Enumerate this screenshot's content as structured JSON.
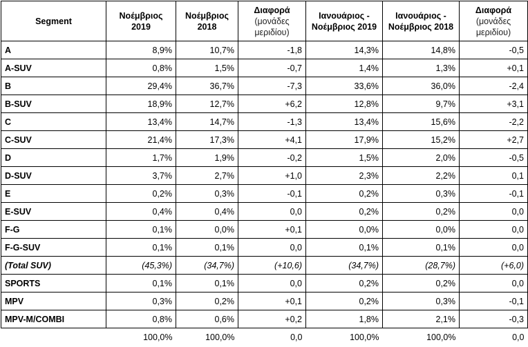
{
  "headers": [
    {
      "main": "Segment",
      "sub": ""
    },
    {
      "main": "Νοέμβριος 2019",
      "sub": ""
    },
    {
      "main": "Νοέμβριος 2018",
      "sub": ""
    },
    {
      "main": "Διαφορά",
      "sub": "(μονάδες μεριδίου)"
    },
    {
      "main": "Ιανουάριος - Νοέμβριος 2019",
      "sub": ""
    },
    {
      "main": "Ιανουάριος - Νοέμβριος 2018",
      "sub": ""
    },
    {
      "main": "Διαφορά",
      "sub": "(μονάδες μεριδίου)"
    }
  ],
  "rows": [
    {
      "segment": "A",
      "cells": [
        "8,9%",
        "10,7%",
        "-1,8",
        "14,3%",
        "14,8%",
        "-0,5"
      ]
    },
    {
      "segment": "A-SUV",
      "cells": [
        "0,8%",
        "1,5%",
        "-0,7",
        "1,4%",
        "1,3%",
        "+0,1"
      ]
    },
    {
      "segment": "B",
      "cells": [
        "29,4%",
        "36,7%",
        "-7,3",
        "33,6%",
        "36,0%",
        "-2,4"
      ]
    },
    {
      "segment": "B-SUV",
      "cells": [
        "18,9%",
        "12,7%",
        "+6,2",
        "12,8%",
        "9,7%",
        "+3,1"
      ]
    },
    {
      "segment": "C",
      "cells": [
        "13,4%",
        "14,7%",
        "-1,3",
        "13,4%",
        "15,6%",
        "-2,2"
      ]
    },
    {
      "segment": "C-SUV",
      "cells": [
        "21,4%",
        "17,3%",
        "+4,1",
        "17,9%",
        "15,2%",
        "+2,7"
      ]
    },
    {
      "segment": "D",
      "cells": [
        "1,7%",
        "1,9%",
        "-0,2",
        "1,5%",
        "2,0%",
        "-0,5"
      ]
    },
    {
      "segment": "D-SUV",
      "cells": [
        "3,7%",
        "2,7%",
        "+1,0",
        "2,3%",
        "2,2%",
        "0,1"
      ]
    },
    {
      "segment": "E",
      "cells": [
        "0,2%",
        "0,3%",
        "-0,1",
        "0,2%",
        "0,3%",
        "-0,1"
      ]
    },
    {
      "segment": "E-SUV",
      "cells": [
        "0,4%",
        "0,4%",
        "0,0",
        "0,2%",
        "0,2%",
        "0,0"
      ]
    },
    {
      "segment": "F-G",
      "cells": [
        "0,1%",
        "0,0%",
        "+0,1",
        "0,0%",
        "0,0%",
        "0,0"
      ]
    },
    {
      "segment": "F-G-SUV",
      "cells": [
        "0,1%",
        "0,1%",
        "0,0",
        "0,1%",
        "0,1%",
        "0,0"
      ]
    },
    {
      "segment": "(Total SUV)",
      "cells": [
        "(45,3%)",
        "(34,7%)",
        "(+10,6)",
        "(34,7%)",
        "(28,7%)",
        "(+6,0)"
      ],
      "total": true
    },
    {
      "segment": "SPORTS",
      "cells": [
        "0,1%",
        "0,1%",
        "0,0",
        "0,2%",
        "0,2%",
        "0,0"
      ]
    },
    {
      "segment": "MPV",
      "cells": [
        "0,3%",
        "0,2%",
        "+0,1",
        "0,2%",
        "0,3%",
        "-0,1"
      ]
    },
    {
      "segment": "MPV-M/COMBI",
      "cells": [
        "0,8%",
        "0,6%",
        "+0,2",
        "1,8%",
        "2,1%",
        "-0,3"
      ]
    }
  ],
  "totals": [
    "100,0%",
    "100,0%",
    "0,0",
    "100,0%",
    "100,0%",
    "0,0"
  ]
}
